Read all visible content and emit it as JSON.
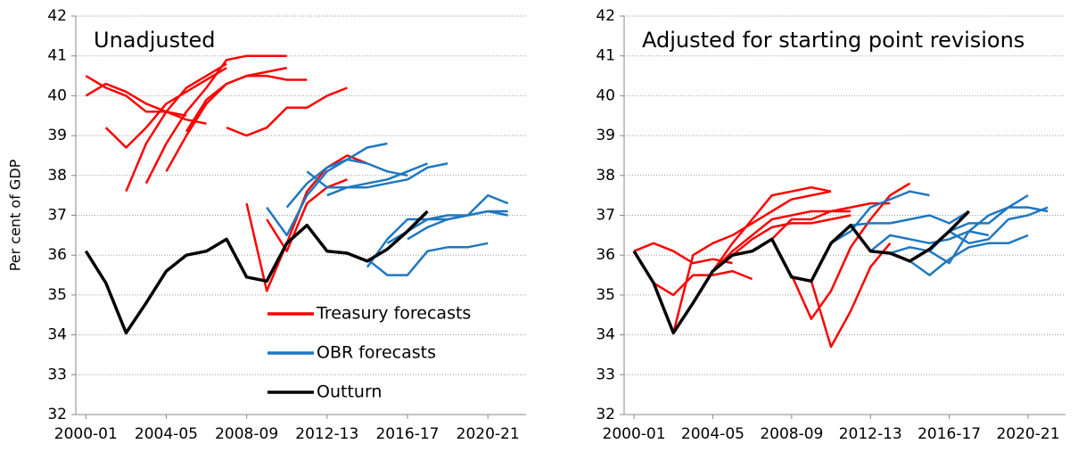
{
  "chart_data": [
    {
      "type": "line",
      "title": "Unadjusted",
      "ylabel": "Per cent of GDP",
      "xlim": [
        1999.5,
        2021.9
      ],
      "xticks": [
        {
          "value": 2000,
          "label": "2000-01"
        },
        {
          "value": 2004,
          "label": "2004-05"
        },
        {
          "value": 2008,
          "label": "2008-09"
        },
        {
          "value": 2012,
          "label": "2012-13"
        },
        {
          "value": 2016,
          "label": "2016-17"
        },
        {
          "value": 2020,
          "label": "2020-21"
        }
      ],
      "ylim": [
        32,
        42
      ],
      "yticks": [
        32,
        33,
        34,
        35,
        36,
        37,
        38,
        39,
        40,
        41,
        42
      ],
      "grid": true,
      "legend": "lower right",
      "series": [
        {
          "name": "Treasury forecasts",
          "color": "#ff0000",
          "lines": [
            {
              "x": [
                2000,
                2001,
                2002,
                2003,
                2004,
                2005
              ],
              "values": [
                40.5,
                40.2,
                40.0,
                39.6,
                39.6,
                39.5
              ]
            },
            {
              "x": [
                2000,
                2001,
                2002,
                2003,
                2004,
                2005,
                2006
              ],
              "values": [
                40.0,
                40.3,
                40.1,
                39.8,
                39.6,
                39.4,
                39.3
              ]
            },
            {
              "x": [
                2001,
                2002,
                2003,
                2004,
                2005,
                2006,
                2007
              ],
              "values": [
                39.2,
                38.7,
                39.2,
                39.8,
                40.1,
                40.4,
                40.7
              ]
            },
            {
              "x": [
                2002,
                2003,
                2004,
                2005,
                2006,
                2007
              ],
              "values": [
                37.6,
                38.8,
                39.6,
                40.2,
                40.5,
                40.8
              ]
            },
            {
              "x": [
                2003,
                2004,
                2005,
                2006,
                2007,
                2008,
                2009,
                2010
              ],
              "values": [
                37.8,
                38.8,
                39.6,
                40.2,
                40.9,
                41.0,
                41.0,
                41.0
              ]
            },
            {
              "x": [
                2004,
                2005,
                2006,
                2007,
                2008,
                2009,
                2010
              ],
              "values": [
                38.1,
                39.0,
                39.8,
                40.3,
                40.5,
                40.6,
                40.7
              ]
            },
            {
              "x": [
                2005,
                2006,
                2007,
                2008,
                2009,
                2010,
                2011
              ],
              "values": [
                39.1,
                39.9,
                40.3,
                40.5,
                40.5,
                40.4,
                40.4
              ]
            },
            {
              "x": [
                2007,
                2008,
                2009,
                2010,
                2011,
                2012,
                2013
              ],
              "values": [
                39.2,
                39.0,
                39.2,
                39.7,
                39.7,
                40.0,
                40.2
              ]
            },
            {
              "x": [
                2008,
                2009,
                2010,
                2011,
                2012,
                2013,
                2014
              ],
              "values": [
                37.3,
                35.1,
                36.3,
                37.6,
                38.2,
                38.5,
                38.3
              ]
            },
            {
              "x": [
                2009,
                2010,
                2011,
                2012,
                2013
              ],
              "values": [
                36.9,
                36.1,
                37.3,
                37.7,
                37.9
              ]
            }
          ]
        },
        {
          "name": "OBR forecasts",
          "color": "#1f77c0",
          "lines": [
            {
              "x": [
                2009,
                2010,
                2011,
                2012,
                2013,
                2014,
                2015
              ],
              "values": [
                37.2,
                36.5,
                37.5,
                38.1,
                38.4,
                38.7,
                38.8
              ]
            },
            {
              "x": [
                2010,
                2011,
                2012,
                2013,
                2014,
                2015,
                2016
              ],
              "values": [
                37.2,
                37.8,
                38.2,
                38.4,
                38.3,
                38.1,
                38.0
              ]
            },
            {
              "x": [
                2011,
                2012,
                2013,
                2014,
                2015,
                2016,
                2017
              ],
              "values": [
                38.1,
                37.7,
                37.7,
                37.8,
                37.9,
                38.1,
                38.3
              ]
            },
            {
              "x": [
                2012,
                2013,
                2014,
                2015,
                2016,
                2017,
                2018
              ],
              "values": [
                37.5,
                37.7,
                37.7,
                37.8,
                37.9,
                38.2,
                38.3
              ]
            },
            {
              "x": [
                2014,
                2015,
                2016,
                2017,
                2018,
                2019,
                2020
              ],
              "values": [
                35.9,
                35.5,
                35.5,
                36.1,
                36.2,
                36.2,
                36.3
              ]
            },
            {
              "x": [
                2014,
                2015,
                2016,
                2017,
                2018,
                2019,
                2020,
                2021
              ],
              "values": [
                35.7,
                36.4,
                36.9,
                36.9,
                36.9,
                37.0,
                37.1,
                37.0
              ]
            },
            {
              "x": [
                2015,
                2016,
                2017,
                2018,
                2019,
                2020,
                2021
              ],
              "values": [
                36.3,
                36.6,
                36.9,
                37.0,
                37.0,
                37.5,
                37.3
              ]
            },
            {
              "x": [
                2016,
                2017,
                2018,
                2019,
                2020,
                2021
              ],
              "values": [
                36.4,
                36.7,
                36.9,
                37.0,
                37.1,
                37.1
              ]
            }
          ]
        },
        {
          "name": "Outturn",
          "color": "#000000",
          "lines": [
            {
              "x": [
                2000,
                2001,
                2002,
                2003,
                2004,
                2005,
                2006,
                2007,
                2008,
                2009,
                2010,
                2011,
                2012,
                2013,
                2014,
                2015,
                2016,
                2017
              ],
              "values": [
                36.1,
                35.3,
                34.05,
                34.8,
                35.6,
                36.0,
                36.1,
                36.4,
                35.45,
                35.35,
                36.3,
                36.75,
                36.1,
                36.05,
                35.85,
                36.15,
                36.6,
                37.1
              ]
            }
          ]
        }
      ]
    },
    {
      "type": "line",
      "title": "Adjusted for starting point revisions",
      "xlim": [
        1999.5,
        2021.9
      ],
      "xticks": [
        {
          "value": 2000,
          "label": "2000-01"
        },
        {
          "value": 2004,
          "label": "2004-05"
        },
        {
          "value": 2008,
          "label": "2008-09"
        },
        {
          "value": 2012,
          "label": "2012-13"
        },
        {
          "value": 2016,
          "label": "2016-17"
        },
        {
          "value": 2020,
          "label": "2020-21"
        }
      ],
      "ylim": [
        32,
        42
      ],
      "yticks": [
        32,
        33,
        34,
        35,
        36,
        37,
        38,
        39,
        40,
        41,
        42
      ],
      "grid": true,
      "series": [
        {
          "color": "#ff0000",
          "lines": [
            {
              "x": [
                2000,
                2001,
                2002,
                2003,
                2004,
                2005
              ],
              "values": [
                36.1,
                36.3,
                36.1,
                35.8,
                35.9,
                35.8
              ]
            },
            {
              "x": [
                2001,
                2002,
                2003,
                2004,
                2005,
                2006
              ],
              "values": [
                35.3,
                35.0,
                35.5,
                35.5,
                35.6,
                35.4
              ]
            },
            {
              "x": [
                2002,
                2003,
                2004,
                2005,
                2006,
                2007,
                2008,
                2009,
                2010
              ],
              "values": [
                34.05,
                36.0,
                36.3,
                36.5,
                36.8,
                37.1,
                37.4,
                37.5,
                37.6
              ]
            },
            {
              "x": [
                2003,
                2004,
                2005,
                2006,
                2007,
                2008,
                2009,
                2010
              ],
              "values": [
                34.8,
                35.6,
                36.3,
                36.9,
                37.5,
                37.6,
                37.7,
                37.6
              ]
            },
            {
              "x": [
                2004,
                2005,
                2006,
                2007,
                2008,
                2009,
                2010,
                2011
              ],
              "values": [
                35.6,
                36.1,
                36.5,
                36.9,
                37.0,
                37.1,
                37.1,
                37.1
              ]
            },
            {
              "x": [
                2005,
                2006,
                2007,
                2008,
                2009,
                2010,
                2011
              ],
              "values": [
                36.0,
                36.4,
                36.7,
                36.8,
                36.8,
                36.9,
                37.0
              ]
            },
            {
              "x": [
                2007,
                2008,
                2009,
                2010,
                2011,
                2012,
                2013
              ],
              "values": [
                36.4,
                36.9,
                36.9,
                37.1,
                37.2,
                37.3,
                37.3
              ]
            },
            {
              "x": [
                2008,
                2009,
                2010,
                2011,
                2012,
                2013,
                2014
              ],
              "values": [
                35.5,
                34.4,
                35.1,
                36.2,
                36.9,
                37.5,
                37.8
              ]
            },
            {
              "x": [
                2009,
                2010,
                2011,
                2012,
                2013
              ],
              "values": [
                35.35,
                33.7,
                34.6,
                35.7,
                36.3
              ]
            }
          ]
        },
        {
          "color": "#1f77c0",
          "lines": [
            {
              "x": [
                2010,
                2011,
                2012,
                2013,
                2014,
                2015
              ],
              "values": [
                36.3,
                36.6,
                37.2,
                37.4,
                37.6,
                37.5
              ]
            },
            {
              "x": [
                2011,
                2012,
                2013,
                2014,
                2015,
                2016,
                2017
              ],
              "values": [
                36.75,
                36.8,
                36.8,
                36.9,
                37.0,
                36.8,
                37.1
              ]
            },
            {
              "x": [
                2012,
                2013,
                2014,
                2015,
                2016,
                2017,
                2018
              ],
              "values": [
                36.1,
                36.5,
                36.4,
                36.3,
                36.4,
                36.6,
                36.5
              ]
            },
            {
              "x": [
                2013,
                2014,
                2015,
                2016,
                2017,
                2018,
                2019,
                2020
              ],
              "values": [
                36.05,
                36.2,
                36.1,
                35.8,
                36.6,
                37.0,
                37.2,
                37.5
              ]
            },
            {
              "x": [
                2014,
                2015,
                2016,
                2017,
                2018,
                2019,
                2020
              ],
              "values": [
                35.85,
                35.5,
                35.9,
                36.2,
                36.3,
                36.3,
                36.5
              ]
            },
            {
              "x": [
                2015,
                2016,
                2017,
                2018,
                2019,
                2020,
                2021
              ],
              "values": [
                36.1,
                36.6,
                36.8,
                36.8,
                37.2,
                37.2,
                37.1
              ]
            },
            {
              "x": [
                2016,
                2017,
                2018,
                2019,
                2020,
                2021
              ],
              "values": [
                36.6,
                36.3,
                36.4,
                36.9,
                37.0,
                37.2
              ]
            }
          ]
        },
        {
          "color": "#000000",
          "lines": [
            {
              "x": [
                2000,
                2001,
                2002,
                2003,
                2004,
                2005,
                2006,
                2007,
                2008,
                2009,
                2010,
                2011,
                2012,
                2013,
                2014,
                2015,
                2016,
                2017
              ],
              "values": [
                36.1,
                35.3,
                34.05,
                34.8,
                35.6,
                36.0,
                36.1,
                36.4,
                35.45,
                35.35,
                36.3,
                36.75,
                36.1,
                36.05,
                35.85,
                36.15,
                36.6,
                37.1
              ]
            }
          ]
        }
      ]
    }
  ]
}
